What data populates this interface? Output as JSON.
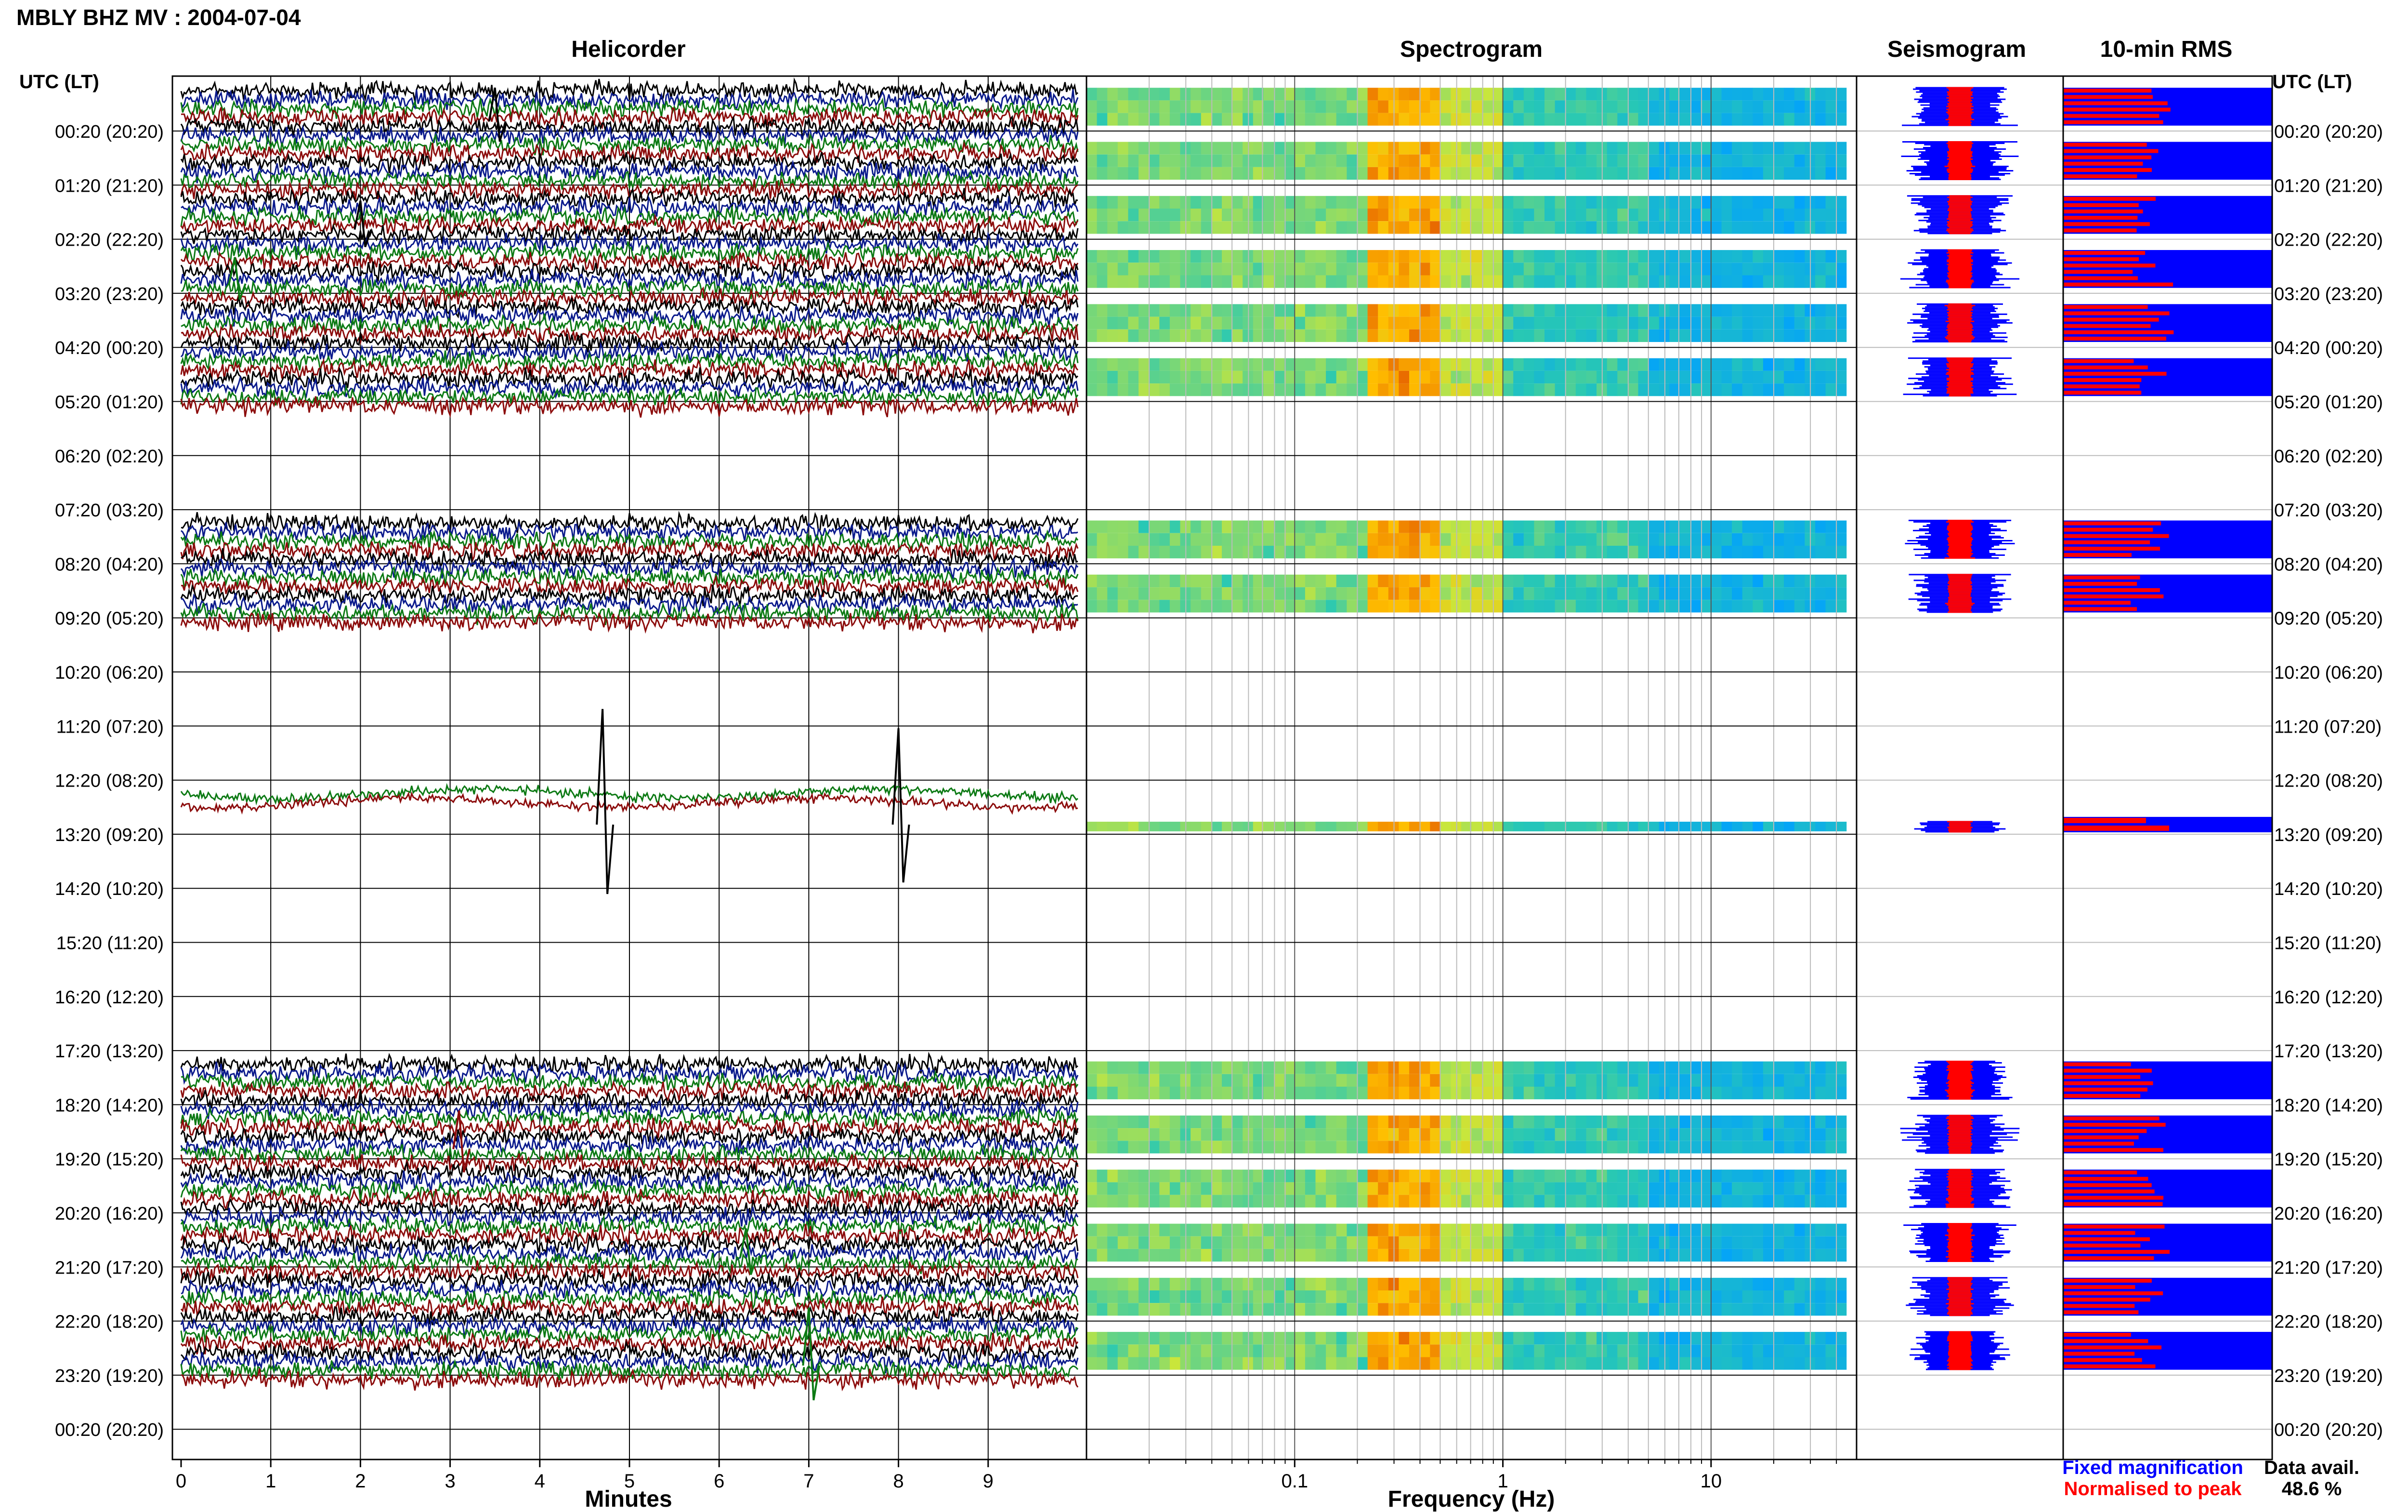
{
  "title": "MBLY BHZ MV : 2004-07-04",
  "panels": {
    "helicorder": "Helicorder",
    "spectrogram": "Spectrogram",
    "seismogram": "Seismogram",
    "rms": "10-min RMS"
  },
  "time_axis_label": "UTC (LT)",
  "row_labels": [
    "00:20 (20:20)",
    "01:20 (21:20)",
    "02:20 (22:20)",
    "03:20 (23:20)",
    "04:20 (00:20)",
    "05:20 (01:20)",
    "06:20 (02:20)",
    "07:20 (03:20)",
    "08:20 (04:20)",
    "09:20 (05:20)",
    "10:20 (06:20)",
    "11:20 (07:20)",
    "12:20 (08:20)",
    "13:20 (09:20)",
    "14:20 (10:20)",
    "15:20 (11:20)",
    "16:20 (12:20)",
    "17:20 (13:20)",
    "18:20 (14:20)",
    "19:20 (15:20)",
    "20:20 (16:20)",
    "21:20 (17:20)",
    "22:20 (18:20)",
    "23:20 (19:20)",
    "00:20 (20:20)"
  ],
  "legend": {
    "fixed": "Fixed magnification",
    "normalised": "Normalised to peak",
    "avail_label": "Data avail.",
    "avail_value": "48.6 %"
  },
  "colors": {
    "black": "#000000",
    "blue": "#0a1a8c",
    "green": "#0c7a14",
    "red": "#8c0c0c",
    "fixed": "#0000ff",
    "normalised": "#ff0000"
  },
  "chart_data": {
    "type": "helicorder",
    "helicorder": {
      "xlabel": "Minutes",
      "x_ticks": [
        "0",
        "1",
        "2",
        "3",
        "4",
        "5",
        "6",
        "7",
        "8",
        "9"
      ],
      "xlim": [
        0,
        10
      ],
      "trace_colors_cycle": [
        "black",
        "blue",
        "green",
        "red"
      ],
      "data_segments_hours": [
        [
          0,
          6
        ],
        [
          7.5,
          9.5
        ],
        [
          12.5,
          13.5
        ],
        [
          18,
          24
        ]
      ]
    },
    "spectrogram": {
      "xlabel": "Frequency (Hz)",
      "x_ticks": [
        "0.1",
        "1",
        "10"
      ],
      "x_scale": "log",
      "xlim": [
        0.01,
        50
      ]
    },
    "seismogram": {
      "series": [
        {
          "name": "Fixed magnification",
          "color": "#0000ff"
        },
        {
          "name": "Normalised to peak",
          "color": "#ff0000"
        }
      ]
    },
    "data_availability_percent": 48.6
  }
}
